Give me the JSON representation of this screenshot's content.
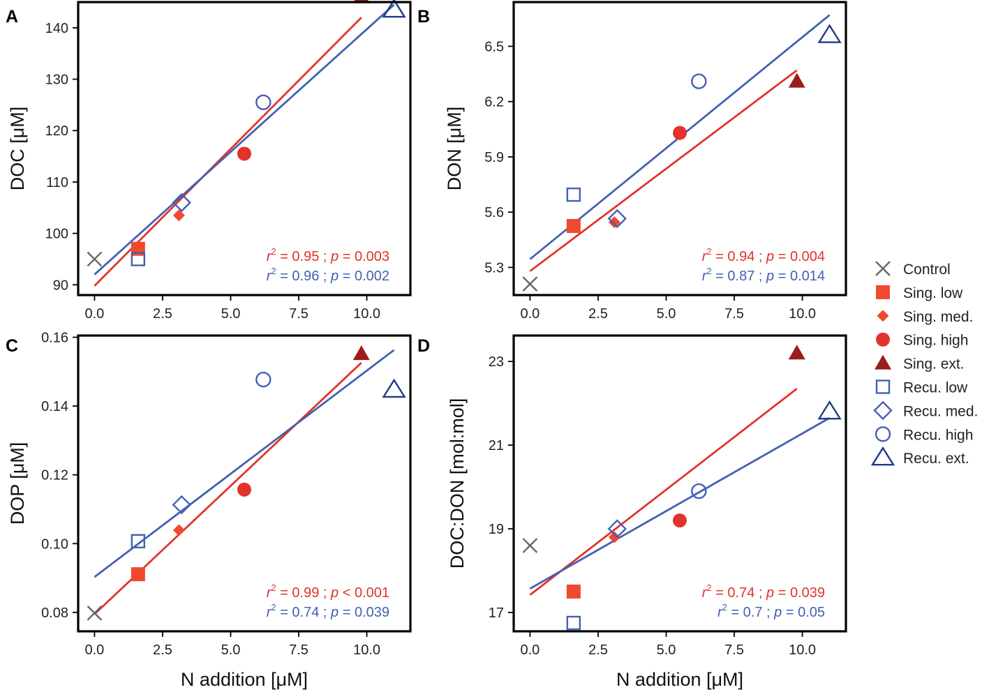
{
  "colors": {
    "sing": "#e1332b",
    "sing_bright": "#f0492f",
    "sing_dark": "#9b1c1c",
    "recu": "#4360b3",
    "recu_dark": "#1f3a86",
    "control": "#666666"
  },
  "legend": {
    "entries": [
      {
        "label": "Control",
        "marker": "x",
        "color": "#666666"
      },
      {
        "label": "Sing. low",
        "marker": "square-filled",
        "color": "#f0492f"
      },
      {
        "label": "Sing. med.",
        "marker": "diamond-filled",
        "color": "#f0492f"
      },
      {
        "label": "Sing. high",
        "marker": "circle-filled",
        "color": "#e1332b"
      },
      {
        "label": "Sing. ext.",
        "marker": "triangle-filled",
        "color": "#9b1c1c"
      },
      {
        "label": "Recu. low",
        "marker": "square-open",
        "color": "#4360b3"
      },
      {
        "label": "Recu. med.",
        "marker": "diamond-open",
        "color": "#4360b3"
      },
      {
        "label": "Recu. high",
        "marker": "circle-open",
        "color": "#4360b3"
      },
      {
        "label": "Recu. ext.",
        "marker": "triangle-open",
        "color": "#1f3a86"
      }
    ]
  },
  "chart_data": [
    {
      "panel": "A",
      "type": "scatter",
      "xlabel": "",
      "ylabel_main": "DOC ",
      "ylabel_unit": "[μM]",
      "xlim": [
        -0.6,
        11.6
      ],
      "ylim": [
        88,
        145
      ],
      "xticks": [
        0.0,
        2.5,
        5.0,
        7.5,
        10.0
      ],
      "xtick_labels": [
        "0.0",
        "2.5",
        "5.0",
        "7.5",
        "10.0"
      ],
      "yticks": [
        90,
        100,
        110,
        120,
        130,
        140
      ],
      "ytick_labels": [
        "90",
        "100",
        "110",
        "120",
        "130",
        "140"
      ],
      "points": [
        {
          "series": "Control",
          "x": 0.0,
          "y": 95.0
        },
        {
          "series": "Sing. low",
          "x": 1.6,
          "y": 97.0
        },
        {
          "series": "Sing. med.",
          "x": 3.1,
          "y": 103.5
        },
        {
          "series": "Sing. high",
          "x": 5.5,
          "y": 115.5
        },
        {
          "series": "Sing. ext.",
          "x": 9.8,
          "y": 146.0
        },
        {
          "series": "Recu. low",
          "x": 1.6,
          "y": 95.0
        },
        {
          "series": "Recu. med.",
          "x": 3.2,
          "y": 106.0
        },
        {
          "series": "Recu. high",
          "x": 6.2,
          "y": 125.5
        },
        {
          "series": "Recu. ext.",
          "x": 11.0,
          "y": 143.5
        }
      ],
      "fits": [
        {
          "group": "Sing.",
          "x0": 0.0,
          "y0": 89.8,
          "x1": 9.8,
          "y1": 142.0
        },
        {
          "group": "Recu.",
          "x0": 0.0,
          "y0": 92.0,
          "x1": 11.0,
          "y1": 144.5
        }
      ],
      "stats": [
        {
          "group": "Sing.",
          "r2": "0.95",
          "p_op": "=",
          "p": "0.003"
        },
        {
          "group": "Recu.",
          "r2": "0.96",
          "p_op": "=",
          "p": "0.002"
        }
      ]
    },
    {
      "panel": "B",
      "type": "scatter",
      "xlabel": "",
      "ylabel_main": "DON ",
      "ylabel_unit": "[μM]",
      "xlim": [
        -0.6,
        11.6
      ],
      "ylim": [
        5.15,
        6.74
      ],
      "xticks": [
        0.0,
        2.5,
        5.0,
        7.5,
        10.0
      ],
      "xtick_labels": [
        "0.0",
        "2.5",
        "5.0",
        "7.5",
        "10.0"
      ],
      "yticks": [
        5.3,
        5.6,
        5.9,
        6.2,
        6.5
      ],
      "ytick_labels": [
        "5.3",
        "5.6",
        "5.9",
        "6.2",
        "6.5"
      ],
      "points": [
        {
          "series": "Control",
          "x": 0.0,
          "y": 5.21
        },
        {
          "series": "Sing. low",
          "x": 1.6,
          "y": 5.525
        },
        {
          "series": "Sing. med.",
          "x": 3.1,
          "y": 5.545
        },
        {
          "series": "Sing. high",
          "x": 5.5,
          "y": 6.03
        },
        {
          "series": "Sing. ext.",
          "x": 9.8,
          "y": 6.31
        },
        {
          "series": "Recu. low",
          "x": 1.6,
          "y": 5.695
        },
        {
          "series": "Recu. med.",
          "x": 3.2,
          "y": 5.565
        },
        {
          "series": "Recu. high",
          "x": 6.2,
          "y": 6.31
        },
        {
          "series": "Recu. ext.",
          "x": 11.0,
          "y": 6.56
        }
      ],
      "fits": [
        {
          "group": "Sing.",
          "x0": 0.0,
          "y0": 5.28,
          "x1": 9.8,
          "y1": 6.37
        },
        {
          "group": "Recu.",
          "x0": 0.0,
          "y0": 5.345,
          "x1": 11.0,
          "y1": 6.67
        }
      ],
      "stats": [
        {
          "group": "Sing.",
          "r2": "0.94",
          "p_op": "=",
          "p": "0.004"
        },
        {
          "group": "Recu.",
          "r2": "0.87",
          "p_op": "=",
          "p": "0.014"
        }
      ]
    },
    {
      "panel": "C",
      "type": "scatter",
      "xlabel": "N addition [μM]",
      "ylabel_main": "DOP ",
      "ylabel_unit": "[μM]",
      "xlim": [
        -0.6,
        11.6
      ],
      "ylim": [
        0.0745,
        0.1605
      ],
      "xticks": [
        0.0,
        2.5,
        5.0,
        7.5,
        10.0
      ],
      "xtick_labels": [
        "0.0",
        "2.5",
        "5.0",
        "7.5",
        "10.0"
      ],
      "yticks": [
        0.08,
        0.1,
        0.12,
        0.14,
        0.16
      ],
      "ytick_labels": [
        "0.08",
        "0.10",
        "0.12",
        "0.14",
        "0.16"
      ],
      "points": [
        {
          "series": "Control",
          "x": 0.0,
          "y": 0.0798
        },
        {
          "series": "Sing. low",
          "x": 1.6,
          "y": 0.0911
        },
        {
          "series": "Sing. med.",
          "x": 3.1,
          "y": 0.1039
        },
        {
          "series": "Sing. high",
          "x": 5.5,
          "y": 0.1157
        },
        {
          "series": "Sing. ext.",
          "x": 9.8,
          "y": 0.1552
        },
        {
          "series": "Recu. low",
          "x": 1.6,
          "y": 0.1007
        },
        {
          "series": "Recu. med.",
          "x": 3.2,
          "y": 0.1113
        },
        {
          "series": "Recu. high",
          "x": 6.2,
          "y": 0.1477
        },
        {
          "series": "Recu. ext.",
          "x": 11.0,
          "y": 0.1447
        }
      ],
      "fits": [
        {
          "group": "Sing.",
          "x0": 0.0,
          "y0": 0.0795,
          "x1": 9.8,
          "y1": 0.1526
        },
        {
          "group": "Recu.",
          "x0": 0.0,
          "y0": 0.0903,
          "x1": 11.0,
          "y1": 0.1563
        }
      ],
      "stats": [
        {
          "group": "Sing.",
          "r2": "0.99",
          "p_op": "<",
          "p": "0.001"
        },
        {
          "group": "Recu.",
          "r2": "0.74",
          "p_op": "=",
          "p": "0.039"
        }
      ]
    },
    {
      "panel": "D",
      "type": "scatter",
      "xlabel": "N addition [μM]",
      "ylabel_main": "DOC:DON ",
      "ylabel_unit": "[mol:mol]",
      "xlim": [
        -0.6,
        11.6
      ],
      "ylim": [
        16.55,
        23.62
      ],
      "xticks": [
        0.0,
        2.5,
        5.0,
        7.5,
        10.0
      ],
      "xtick_labels": [
        "0.0",
        "2.5",
        "5.0",
        "7.5",
        "10.0"
      ],
      "yticks": [
        17,
        19,
        21,
        23
      ],
      "ytick_labels": [
        "17",
        "19",
        "21",
        "23"
      ],
      "points": [
        {
          "series": "Control",
          "x": 0.0,
          "y": 18.6
        },
        {
          "series": "Sing. low",
          "x": 1.6,
          "y": 17.5
        },
        {
          "series": "Sing. med.",
          "x": 3.1,
          "y": 18.8
        },
        {
          "series": "Sing. high",
          "x": 5.5,
          "y": 19.2
        },
        {
          "series": "Sing. ext.",
          "x": 9.8,
          "y": 23.2
        },
        {
          "series": "Recu. low",
          "x": 1.6,
          "y": 16.75
        },
        {
          "series": "Recu. med.",
          "x": 3.2,
          "y": 19.0
        },
        {
          "series": "Recu. high",
          "x": 6.2,
          "y": 19.9
        },
        {
          "series": "Recu. ext.",
          "x": 11.0,
          "y": 21.8
        }
      ],
      "fits": [
        {
          "group": "Sing.",
          "x0": 0.0,
          "y0": 17.42,
          "x1": 9.8,
          "y1": 22.35
        },
        {
          "group": "Recu.",
          "x0": 0.0,
          "y0": 17.57,
          "x1": 11.0,
          "y1": 21.65
        }
      ],
      "stats": [
        {
          "group": "Sing.",
          "r2": "0.74",
          "p_op": "=",
          "p": "0.039"
        },
        {
          "group": "Recu.",
          "r2": "0.7",
          "p_op": "=",
          "p": "0.05"
        }
      ]
    }
  ]
}
